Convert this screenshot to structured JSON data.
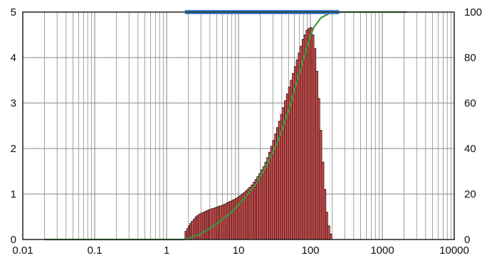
{
  "chart_data": {
    "type": "bar",
    "xscale": "log",
    "xlim": [
      0.01,
      10000
    ],
    "ylim_left": [
      0,
      5
    ],
    "ylim_right": [
      0,
      100
    ],
    "grid": true,
    "x_ticks": [
      "0.01",
      "0.1",
      "1",
      "10",
      "100",
      "1000",
      "10000"
    ],
    "y_left_ticks": [
      "0",
      "1",
      "2",
      "3",
      "4",
      "5"
    ],
    "y_right_ticks": [
      "0",
      "20",
      "40",
      "60",
      "80",
      "100"
    ],
    "range_band": [
      1.8,
      250
    ],
    "histogram": {
      "x": [
        1.8,
        1.9,
        2.0,
        2.1,
        2.2,
        2.35,
        2.5,
        2.65,
        2.8,
        3.0,
        3.2,
        3.4,
        3.6,
        3.8,
        4.0,
        4.3,
        4.6,
        4.9,
        5.2,
        5.5,
        5.9,
        6.3,
        6.7,
        7.1,
        7.5,
        8.0,
        8.5,
        9.0,
        9.6,
        10.2,
        10.9,
        11.6,
        12.4,
        13.2,
        14.0,
        15.0,
        16.0,
        17.0,
        18.0,
        19.2,
        20.5,
        21.8,
        23.2,
        24.7,
        26.3,
        28.0,
        29.8,
        31.8,
        33.8,
        36.0,
        38.4,
        40.9,
        43.5,
        46.4,
        49.4,
        52.6,
        56.0,
        59.7,
        63.5,
        67.7,
        72.1,
        76.8,
        81.8,
        87.1,
        92.7,
        98.8,
        105,
        112,
        119,
        127,
        135,
        144,
        154,
        164,
        174,
        186,
        198,
        210,
        224
      ],
      "values": [
        0.18,
        0.24,
        0.3,
        0.35,
        0.4,
        0.45,
        0.5,
        0.53,
        0.56,
        0.58,
        0.6,
        0.62,
        0.64,
        0.65,
        0.67,
        0.68,
        0.7,
        0.71,
        0.73,
        0.74,
        0.76,
        0.78,
        0.8,
        0.82,
        0.84,
        0.86,
        0.88,
        0.9,
        0.93,
        0.96,
        0.99,
        1.03,
        1.07,
        1.11,
        1.15,
        1.2,
        1.26,
        1.32,
        1.38,
        1.45,
        1.53,
        1.6,
        1.7,
        1.8,
        1.92,
        2.05,
        2.18,
        2.32,
        2.46,
        2.6,
        2.75,
        2.9,
        3.05,
        3.2,
        3.35,
        3.5,
        3.65,
        3.8,
        3.95,
        4.1,
        4.25,
        4.4,
        4.5,
        4.6,
        4.64,
        4.66,
        4.5,
        4.2,
        3.7,
        3.1,
        2.4,
        1.7,
        1.1,
        0.6,
        0.3,
        0.12,
        0,
        0,
        0
      ]
    },
    "cumulative": {
      "x": [
        0.02,
        1.8,
        3,
        5,
        8,
        12,
        18,
        25,
        35,
        50,
        70,
        90,
        110,
        140,
        180,
        220,
        260,
        2200
      ],
      "values": [
        0,
        0,
        2.5,
        7,
        12,
        18,
        25,
        33,
        43,
        57,
        73,
        85,
        93,
        97.5,
        99.3,
        99.9,
        100,
        100
      ]
    },
    "colors": {
      "bar_fill": "#e05555",
      "bar_edge": "#2a1414",
      "cumulative_line": "#3a9a3a",
      "range_band": "#3f86c6",
      "grid": "#8a8a8a",
      "axis": "#222222"
    }
  }
}
